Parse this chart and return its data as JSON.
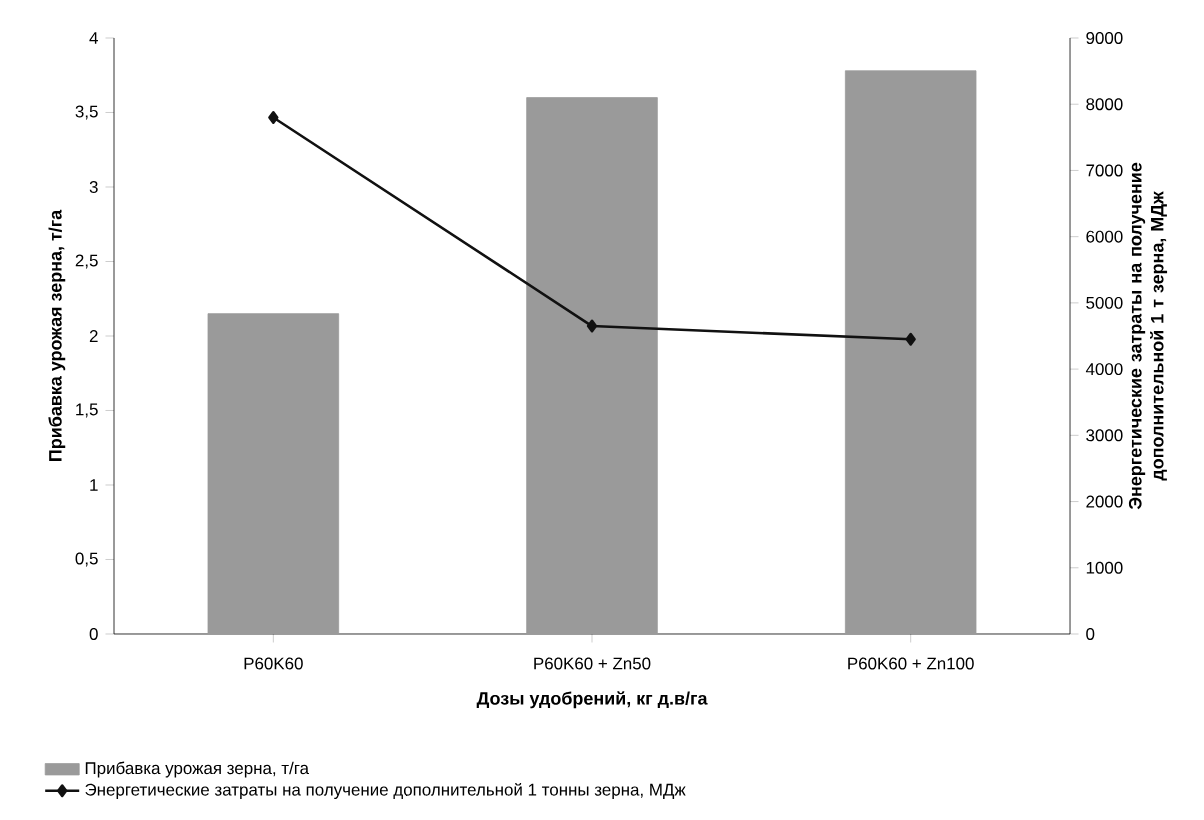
{
  "chart_data": {
    "type": "bar",
    "xlabel": "Дозы удобрений, кг д.в/га",
    "ylabel": "Прибавка урожая зерна, т/га",
    "y2label": "Энергетические затраты на получение дополнительной 1 т зерна, МДж",
    "categories": [
      "P60K60",
      "P60K60 + Zn50",
      "P60K60 + Zn100"
    ],
    "series": [
      {
        "name": "Прибавка урожая зерна, т/га",
        "color": "#9a9a9a",
        "values": [
          2.15,
          3.6,
          3.78
        ]
      },
      {
        "name": "Энергетические затраты на получение дополнительной 1 тонны зерна, МДж",
        "type": "line",
        "axis": "y2",
        "color": "#111111",
        "values": [
          7800,
          4650,
          4450
        ]
      }
    ],
    "ylim": [
      0,
      4
    ],
    "yticks": [
      0,
      {
        "value": 0.5,
        "label": "0,5"
      },
      1,
      {
        "value": 1.5,
        "label": "1,5"
      },
      2,
      {
        "value": 2.5,
        "label": "2,5"
      },
      3,
      {
        "value": 3.5,
        "label": "3,5"
      },
      4
    ],
    "y2lim": [
      0,
      9000
    ],
    "y2ticks": [
      0,
      1000,
      2000,
      3000,
      4000,
      5000,
      6000,
      7000,
      8000,
      9000
    ],
    "legend": "bottom",
    "marker": "diamond",
    "line_style": "solid"
  }
}
